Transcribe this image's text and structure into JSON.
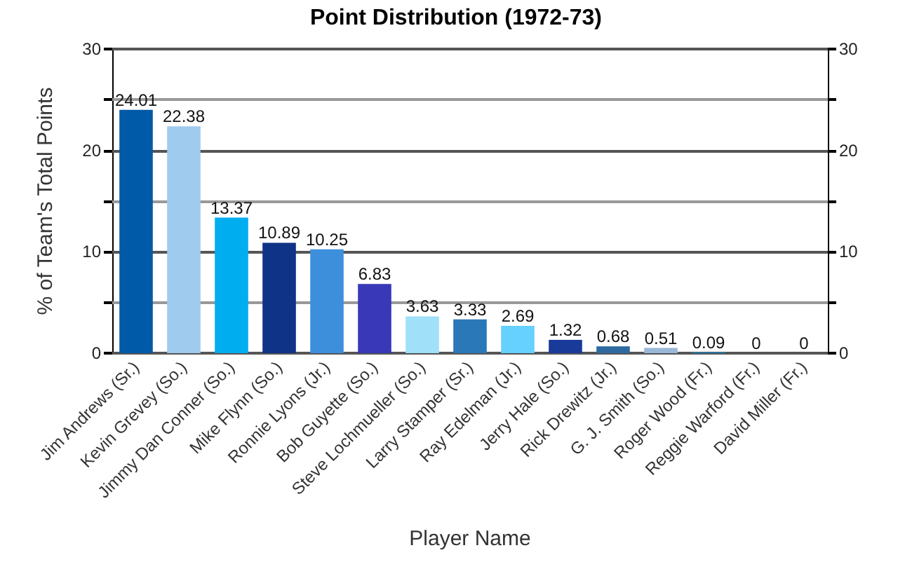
{
  "chart_data": {
    "type": "bar",
    "title": "Point Distribution (1972-73)",
    "xlabel": "Player Name",
    "ylabel": "% of Team's Total Points",
    "categories": [
      "Jim Andrews (Sr.)",
      "Kevin Grevey (So.)",
      "Jimmy Dan Conner (So.)",
      "Mike Flynn (So.)",
      "Ronnie Lyons (Jr.)",
      "Bob Guyette (So.)",
      "Steve Lochmueller (So.)",
      "Larry Stamper (Sr.)",
      "Ray Edelman (Jr.)",
      "Jerry Hale (So.)",
      "Rick Drewitz (Jr.)",
      "G. J. Smith (So.)",
      "Roger Wood (Fr.)",
      "Reggie Warford (Fr.)",
      "David Miller (Fr.)"
    ],
    "values": [
      24.01,
      22.38,
      13.37,
      10.89,
      10.25,
      6.83,
      3.63,
      3.33,
      2.69,
      1.32,
      0.68,
      0.51,
      0.09,
      0,
      0
    ],
    "colors": [
      "#005aa8",
      "#9fcbee",
      "#00aeef",
      "#0f3386",
      "#3d8fdc",
      "#3838b8",
      "#a0e0f8",
      "#2a78b8",
      "#66d0ff",
      "#1a3a9a",
      "#2e6aa0",
      "#9ab8d8",
      "#1a88c8",
      "#888888",
      "#888888"
    ],
    "ylim": [
      0,
      30
    ],
    "yticks": [
      0,
      {
        "value": 5,
        "label": null
      },
      10,
      {
        "value": 15,
        "label": null
      },
      20,
      {
        "value": 25,
        "label": null
      },
      30
    ],
    "y2lim": [
      0,
      30
    ],
    "y2ticks": [
      0,
      {
        "value": 5,
        "label": null
      },
      10,
      {
        "value": 15,
        "label": null
      },
      20,
      {
        "value": 25,
        "label": null
      },
      30
    ],
    "grid": true,
    "data_labels": true
  }
}
